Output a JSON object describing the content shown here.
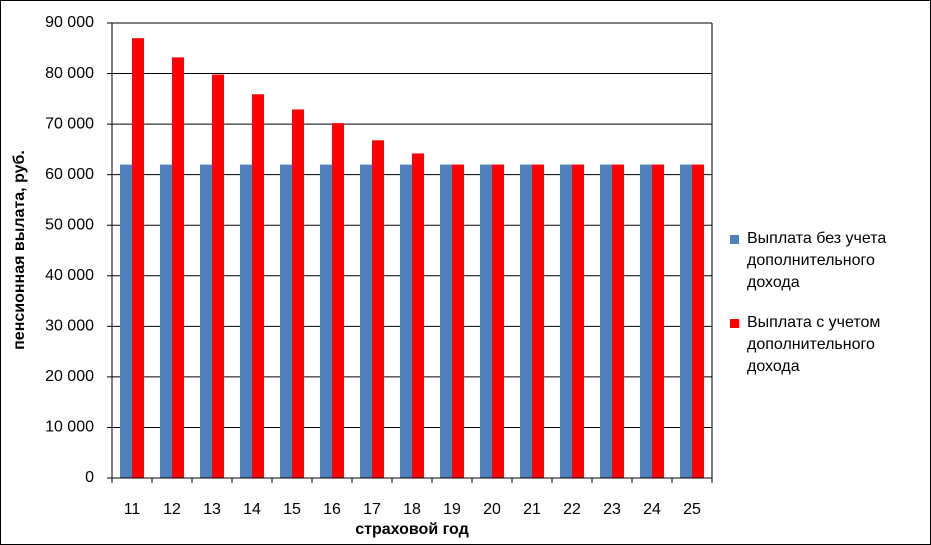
{
  "chart_data": {
    "type": "bar",
    "xlabel": "страховой год",
    "ylabel": "пенсионная вылата, руб.",
    "categories": [
      "11",
      "12",
      "13",
      "14",
      "15",
      "16",
      "17",
      "18",
      "19",
      "20",
      "21",
      "22",
      "23",
      "24",
      "25"
    ],
    "series": [
      {
        "name": "Выплата без учета дополнительного дохода",
        "color": "#4f81bd",
        "values": [
          62000,
          62000,
          62000,
          62000,
          62000,
          62000,
          62000,
          62000,
          62000,
          62000,
          62000,
          62000,
          62000,
          62000,
          62000
        ]
      },
      {
        "name": "Выплата с учетом дополнительного дохода",
        "color": "#ff0000",
        "values": [
          87000,
          83200,
          79800,
          75900,
          72900,
          70200,
          66800,
          64200,
          62000,
          62000,
          62000,
          62000,
          62000,
          62000,
          62000
        ]
      }
    ],
    "ylim": [
      0,
      90000
    ],
    "yticks": [
      0,
      {
        "value": 10000,
        "label": "10 000"
      },
      {
        "value": 20000,
        "label": "20 000"
      },
      {
        "value": 30000,
        "label": "30 000"
      },
      {
        "value": 40000,
        "label": "40 000"
      },
      {
        "value": 50000,
        "label": "50 000"
      },
      {
        "value": 60000,
        "label": "60 000"
      },
      {
        "value": 70000,
        "label": "70 000"
      },
      {
        "value": 80000,
        "label": "80 000"
      },
      {
        "value": 90000,
        "label": "90 000"
      }
    ],
    "grid": true,
    "legend": "right"
  }
}
